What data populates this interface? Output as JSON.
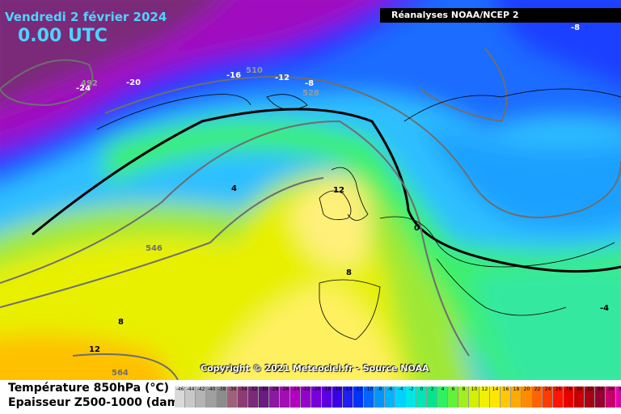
{
  "header": {
    "date": "Vendredi 2 février 2024",
    "time": "0.00 UTC",
    "source": "Réanalyses NOAA/NCEP 2"
  },
  "copyright": "Copyright © 2021 Meteociel.fr - Source NOAA",
  "legend": {
    "title_temperature": "Température 850hPa (°C)",
    "title_thickness": "Epaisseur Z500-1000 (dam)",
    "scale": [
      {
        "v": "-46",
        "c": "#d9d9d9"
      },
      {
        "v": "-44",
        "c": "#c8c8c8"
      },
      {
        "v": "-42",
        "c": "#b4b4b4"
      },
      {
        "v": "-40",
        "c": "#a0a0a0"
      },
      {
        "v": "-38",
        "c": "#8c8c8c"
      },
      {
        "v": "-36",
        "c": "#a0607a"
      },
      {
        "v": "-34",
        "c": "#8c3c72"
      },
      {
        "v": "-32",
        "c": "#7a2a78"
      },
      {
        "v": "-30",
        "c": "#6a1a80"
      },
      {
        "v": "-28",
        "c": "#8a1aa0"
      },
      {
        "v": "-26",
        "c": "#a010b0"
      },
      {
        "v": "-24",
        "c": "#b400c0"
      },
      {
        "v": "-22",
        "c": "#9600cc"
      },
      {
        "v": "-20",
        "c": "#7800d8"
      },
      {
        "v": "-18",
        "c": "#5a00e0"
      },
      {
        "v": "-16",
        "c": "#3c00e8"
      },
      {
        "v": "-14",
        "c": "#1e1ef0"
      },
      {
        "v": "-12",
        "c": "#0032ff"
      },
      {
        "v": "-10",
        "c": "#0064ff"
      },
      {
        "v": "-8",
        "c": "#0096ff"
      },
      {
        "v": "-6",
        "c": "#00b4ff"
      },
      {
        "v": "-4",
        "c": "#00d2ff"
      },
      {
        "v": "-2",
        "c": "#00e6e6"
      },
      {
        "v": "0",
        "c": "#00e6b4"
      },
      {
        "v": "2",
        "c": "#00e68c"
      },
      {
        "v": "4",
        "c": "#32f064"
      },
      {
        "v": "6",
        "c": "#64f03c"
      },
      {
        "v": "8",
        "c": "#a0f01e"
      },
      {
        "v": "10",
        "c": "#d2f000"
      },
      {
        "v": "12",
        "c": "#f0f000"
      },
      {
        "v": "14",
        "c": "#ffe600"
      },
      {
        "v": "16",
        "c": "#ffc800"
      },
      {
        "v": "18",
        "c": "#ffaa00"
      },
      {
        "v": "20",
        "c": "#ff8c00"
      },
      {
        "v": "22",
        "c": "#ff6400"
      },
      {
        "v": "24",
        "c": "#ff3c00"
      },
      {
        "v": "26",
        "c": "#ff1400"
      },
      {
        "v": "28",
        "c": "#e60000"
      },
      {
        "v": "30",
        "c": "#c80000"
      },
      {
        "v": "32",
        "c": "#aa0014"
      },
      {
        "v": "34",
        "c": "#960032"
      },
      {
        "v": "36",
        "c": "#c8006e"
      },
      {
        "v": "38",
        "c": "#e600b4"
      },
      {
        "v": "40",
        "c": "#ff00ff"
      }
    ]
  },
  "map_labels": {
    "temperature": [
      "-24",
      "-20",
      "-16",
      "-12",
      "-8",
      "4",
      "12",
      "8",
      "8",
      "0",
      "-4",
      "12",
      "-8"
    ],
    "thickness": [
      "492",
      "510",
      "528",
      "546",
      "564"
    ]
  }
}
